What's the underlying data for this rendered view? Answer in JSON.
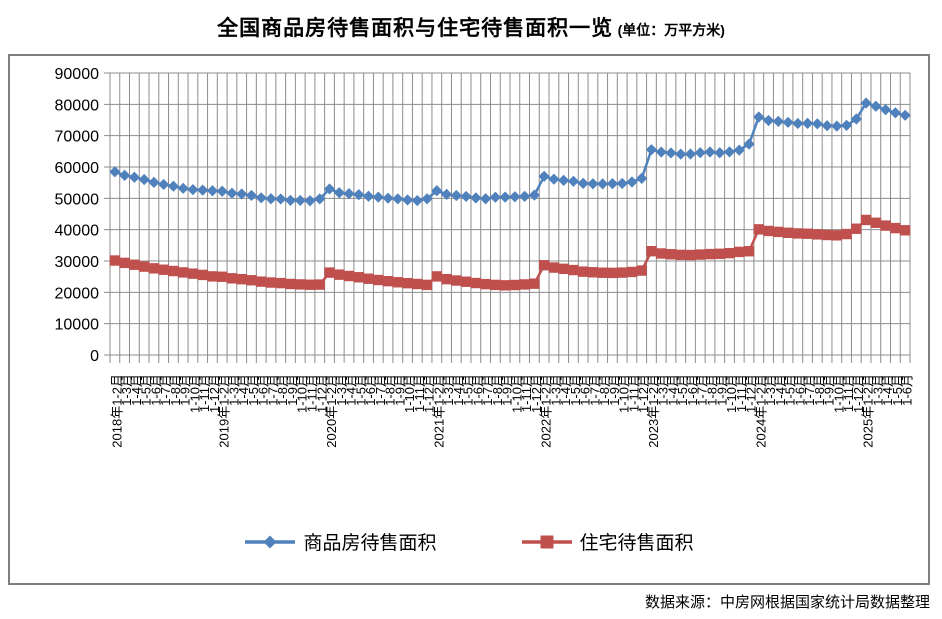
{
  "chart_data": {
    "type": "line",
    "title": "全国商品房待售面积与住宅待售面积一览",
    "title_suffix": "(单位：万平方米)",
    "source_note": "数据来源：中房网根据国家统计局数据整理",
    "ylim": [
      0,
      90000
    ],
    "yticks": [
      90000,
      80000,
      70000,
      60000,
      50000,
      40000,
      30000,
      20000,
      10000,
      0
    ],
    "grid": true,
    "grid_color": "#8c8c8c",
    "axis_text_color": "#000000",
    "legend_position": "bottom",
    "categories": [
      "2018年1-2月",
      "1-3月",
      "1-4月",
      "1-5月",
      "1-6月",
      "1-7月",
      "1-8月",
      "1-9月",
      "1-10月",
      "1-11月",
      "1-12月",
      "2019年1-2月",
      "1-3月",
      "1-4月",
      "1-5月",
      "1-6月",
      "1-7月",
      "1-8月",
      "1-9月",
      "1-10月",
      "1-11月",
      "1-12月",
      "2020年1-2月",
      "1-3月",
      "1-4月",
      "1-5月",
      "1-6月",
      "1-7月",
      "1-8月",
      "1-9月",
      "1-10月",
      "1-11月",
      "1-12月",
      "2021年1-2月",
      "1-3月",
      "1-4月",
      "1-5月",
      "1-6月",
      "1-7月",
      "1-8月",
      "1-9月",
      "1-10月",
      "1-11月",
      "1-12月",
      "2022年1-2月",
      "1-3月",
      "1-4月",
      "1-5月",
      "1-6月",
      "1-7月",
      "1-8月",
      "1-9月",
      "1-10月",
      "1-11月",
      "1-12月",
      "2023年1-2月",
      "1-3月",
      "1-4月",
      "1-5月",
      "1-6月",
      "1-7月",
      "1-8月",
      "1-9月",
      "1-10月",
      "1-11月",
      "1-12月",
      "2024年1-2月",
      "1-3月",
      "1-4月",
      "1-5月",
      "1-6月",
      "1-7月",
      "1-8月",
      "1-9月",
      "1-10月",
      "1-11月",
      "1-12月",
      "2025年1-2月",
      "1-3月",
      "1-4月",
      "1-5月",
      "1-6月"
    ],
    "series": [
      {
        "id": "commercial",
        "name": "商品房待售面积",
        "color": "#4F81BD",
        "marker": "diamond",
        "values": [
          58468,
          57329,
          56726,
          56010,
          55083,
          54428,
          53873,
          53191,
          52789,
          52627,
          52414,
          52251,
          51646,
          51380,
          50928,
          50162,
          49876,
          49784,
          49346,
          49323,
          49221,
          49821,
          52991,
          51779,
          51512,
          51184,
          50662,
          50382,
          50052,
          49844,
          49492,
          49287,
          49850,
          52425,
          51253,
          50916,
          50610,
          50138,
          49864,
          50359,
          50385,
          50494,
          50621,
          51023,
          57026,
          56113,
          55735,
          55433,
          54784,
          54655,
          54605,
          54703,
          54734,
          55203,
          56366,
          65528,
          64770,
          64487,
          64120,
          64159,
          64564,
          64795,
          64537,
          64835,
          65385,
          67295,
          75969,
          74833,
          74553,
          74256,
          73894,
          73926,
          73784,
          73177,
          73057,
          73286,
          75327,
          80400,
          79400,
          78300,
          77300,
          76500
        ]
      },
      {
        "id": "residential",
        "name": "住宅待售面积",
        "color": "#C0504D",
        "marker": "square",
        "values": [
          30153,
          29400,
          28810,
          28210,
          27660,
          27210,
          26800,
          26360,
          25960,
          25560,
          25091,
          24965,
          24474,
          24192,
          23853,
          23413,
          23128,
          22942,
          22664,
          22533,
          22425,
          22473,
          26302,
          25644,
          25212,
          24812,
          24343,
          23934,
          23564,
          23216,
          22925,
          22664,
          22379,
          25084,
          24203,
          23771,
          23383,
          22972,
          22613,
          22372,
          22231,
          22343,
          22522,
          22761,
          28652,
          27903,
          27506,
          27104,
          26607,
          26403,
          26254,
          26208,
          26304,
          26504,
          26947,
          33129,
          32403,
          32154,
          31954,
          31906,
          32052,
          32203,
          32304,
          32504,
          32904,
          33119,
          40100,
          39600,
          39300,
          39000,
          38800,
          38700,
          38500,
          38300,
          38200,
          38600,
          40300,
          43100,
          42200,
          41300,
          40500,
          39800
        ]
      }
    ]
  }
}
